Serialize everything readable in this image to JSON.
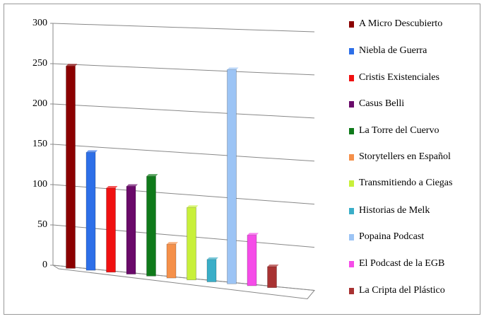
{
  "chart_data": {
    "type": "bar",
    "series": [
      {
        "name": "A Micro Descubierto",
        "color": "#8b0000",
        "values": [
          248
        ]
      },
      {
        "name": "Niebla de Guerra",
        "color": "#2d6fe8",
        "values": [
          143
        ]
      },
      {
        "name": "Cristis Existenciales",
        "color": "#f01010",
        "values": [
          101
        ]
      },
      {
        "name": "Casus Belli",
        "color": "#6a0a6a",
        "values": [
          105
        ]
      },
      {
        "name": "La Torre del Cuervo",
        "color": "#0f7a1a",
        "values": [
          119
        ]
      },
      {
        "name": "Storytellers en Español",
        "color": "#f5904a",
        "values": [
          39
        ]
      },
      {
        "name": "Transmitiendo a Ciegas",
        "color": "#c8f03a",
        "values": [
          85
        ]
      },
      {
        "name": "Historias de Melk",
        "color": "#3aaec8",
        "values": [
          25
        ]
      },
      {
        "name": "Popaina Podcast",
        "color": "#9cc4f5",
        "values": [
          252
        ]
      },
      {
        "name": "El Podcast de la EGB",
        "color": "#f54ce8",
        "values": [
          58
        ]
      },
      {
        "name": "La Cripta del Plástico",
        "color": "#a83232",
        "values": [
          23
        ]
      }
    ],
    "ylim": [
      0,
      300
    ],
    "yticks": [
      0,
      50,
      100,
      150,
      200,
      250,
      300
    ],
    "grid": true
  }
}
